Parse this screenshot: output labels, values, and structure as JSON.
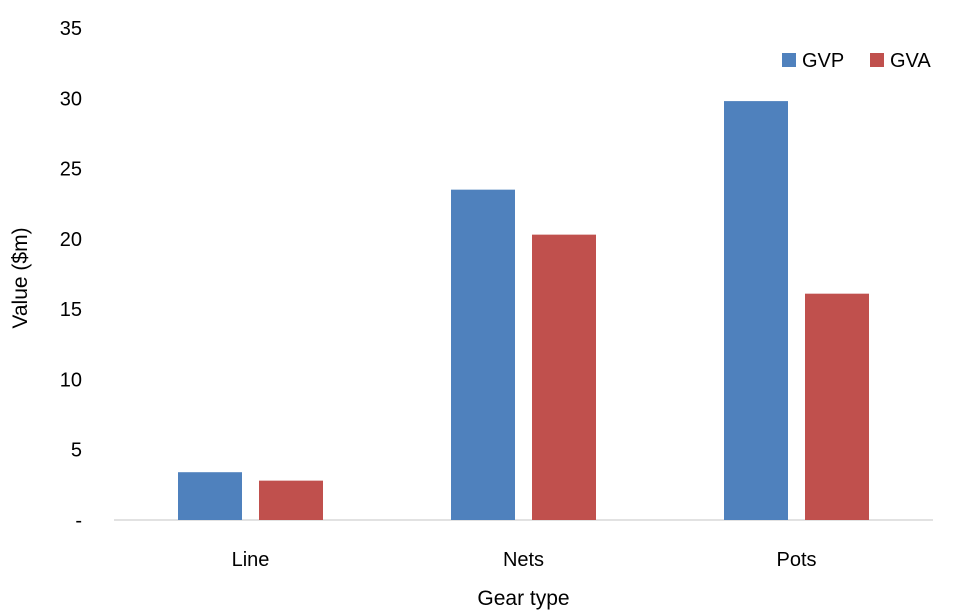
{
  "chart_data": {
    "type": "bar",
    "title": "",
    "xlabel": "Gear type",
    "ylabel": "Value ($m)",
    "categories": [
      "Line",
      "Nets",
      "Pots"
    ],
    "series": [
      {
        "name": "GVP",
        "color": "#4f81bd",
        "values": [
          3.4,
          23.5,
          29.8
        ]
      },
      {
        "name": "GVA",
        "color": "#c0504d",
        "values": [
          2.8,
          20.3,
          16.1
        ]
      }
    ],
    "ylim": [
      0,
      35
    ],
    "yticks": [
      0,
      5,
      10,
      15,
      20,
      25,
      30,
      35
    ],
    "ytick_labels": [
      "-",
      "5",
      "10",
      "15",
      "20",
      "25",
      "30",
      "35"
    ],
    "grid": false,
    "legend": "top-right"
  }
}
